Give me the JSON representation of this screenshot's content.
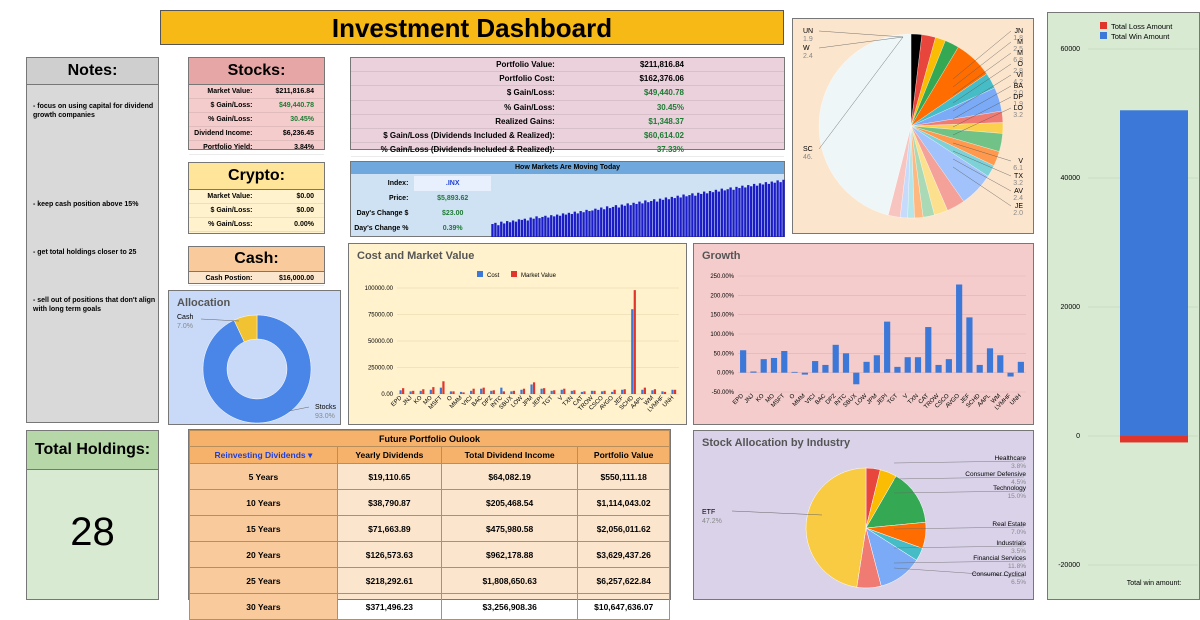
{
  "title": "Investment Dashboard",
  "notes": {
    "header": "Notes:",
    "items": [
      "- focus on using capital for dividend growth companies",
      "- keep cash position above 15%",
      "- get total holdings closer to 25",
      "- sell out of positions that don't align with long term goals"
    ]
  },
  "stocks": {
    "header": "Stocks:",
    "rows": [
      {
        "label": "Market Value:",
        "value": "$211,816.84"
      },
      {
        "label": "$ Gain/Loss:",
        "value": "$49,440.78"
      },
      {
        "label": "% Gain/Loss:",
        "value": "30.45%"
      },
      {
        "label": "Dividend Income:",
        "value": "$6,236.45"
      },
      {
        "label": "Portfolio Yield:",
        "value": "3.84%"
      }
    ]
  },
  "crypto": {
    "header": "Crypto:",
    "rows": [
      {
        "label": "Market Value:",
        "value": "$0.00"
      },
      {
        "label": "$ Gain/Loss:",
        "value": "$0.00"
      },
      {
        "label": "% Gain/Loss:",
        "value": "0.00%"
      }
    ]
  },
  "cash": {
    "header": "Cash:",
    "label": "Cash Postion:",
    "value": "$16,000.00"
  },
  "portfolio": {
    "rows": [
      {
        "label": "Portfolio Value:",
        "value": "$211,816.84"
      },
      {
        "label": "Portfolio Cost:",
        "value": "$162,376.06"
      },
      {
        "label": "$ Gain/Loss:",
        "value": "$49,440.78"
      },
      {
        "label": "% Gain/Loss:",
        "value": "30.45%"
      },
      {
        "label": "Realized Gains:",
        "value": "$1,348.37"
      },
      {
        "label": "$ Gain/Loss (Dividends Included & Realized):",
        "value": "$60,614.02"
      },
      {
        "label": "% Gain/Loss (Dividends Included & Realized):",
        "value": "37.33%"
      }
    ]
  },
  "markets": {
    "header": "How Markets Are Moving Today",
    "rows": [
      {
        "label": "Index:",
        "value": ".INX"
      },
      {
        "label": "Price:",
        "value": "$5,893.62"
      },
      {
        "label": "Day's Change $",
        "value": "$23.00"
      },
      {
        "label": "Day's Change %",
        "value": "0.39%"
      }
    ],
    "spark": [
      22,
      24,
      20,
      26,
      23,
      27,
      25,
      28,
      26,
      30,
      29,
      31,
      28,
      33,
      31,
      35,
      32,
      34,
      36,
      33,
      37,
      35,
      38,
      36,
      40,
      38,
      41,
      39,
      43,
      40,
      44,
      42,
      46,
      44,
      45,
      48,
      46,
      50,
      47,
      52,
      49,
      51,
      54,
      50,
      55,
      53,
      57,
      54,
      58,
      56,
      60,
      57,
      62,
      59,
      61,
      64,
      60,
      65,
      63,
      67,
      64,
      68,
      66,
      70,
      67,
      72,
      69,
      71,
      74,
      70,
      75,
      73,
      77,
      74,
      78,
      76,
      80,
      77,
      82,
      79,
      81,
      84,
      80,
      85,
      83,
      87,
      84,
      88,
      86,
      90,
      87,
      91,
      89,
      93,
      90,
      94,
      92,
      96,
      93,
      97
    ]
  },
  "allocation": {
    "title": "Allocation",
    "slices": [
      {
        "label": "Cash",
        "pct_label": "7.0%",
        "value": 7.0,
        "color": "#f1c232"
      },
      {
        "label": "Stocks",
        "pct_label": "93.0%",
        "value": 93.0,
        "color": "#4a86e8"
      }
    ]
  },
  "holdings": {
    "header": "Total Holdings:",
    "value": "28"
  },
  "future": {
    "title": "Future Portfolio Oulook",
    "select_value": "Reinvesting Dividends",
    "columns": [
      "Yearly Dividends",
      "Total Dividend Income",
      "Portfolio Value"
    ],
    "rows": [
      {
        "years": "5 Years",
        "yearly": "$19,110.65",
        "total": "$64,082.19",
        "value": "$550,111.18"
      },
      {
        "years": "10 Years",
        "yearly": "$38,790.87",
        "total": "$205,468.54",
        "value": "$1,114,043.02"
      },
      {
        "years": "15 Years",
        "yearly": "$71,663.89",
        "total": "$475,980.58",
        "value": "$2,056,011.62"
      },
      {
        "years": "20 Years",
        "yearly": "$126,573.63",
        "total": "$962,178.88",
        "value": "$3,629,437.26"
      },
      {
        "years": "25 Years",
        "yearly": "$218,292.61",
        "total": "$1,808,650.63",
        "value": "$6,257,622.84"
      },
      {
        "years": "30 Years",
        "yearly": "$371,496.23",
        "total": "$3,256,908.36",
        "value": "$10,647,636.07"
      }
    ]
  },
  "colors": {
    "blue": "#3c78d8",
    "red": "#e0352b"
  },
  "chart_data": [
    {
      "id": "cost_mv",
      "type": "bar",
      "title": "Cost and Market Value",
      "legend": [
        "Cost",
        "Market Value"
      ],
      "legend_position": "top",
      "ylim": [
        0,
        100000
      ],
      "yticks": [
        "0.00",
        "25000.00",
        "50000.00",
        "75000.00",
        "100000.00"
      ],
      "categories": [
        "EPD",
        "JNJ",
        "KO",
        "MO",
        "MSFT",
        "O",
        "MMM",
        "VICI",
        "BAC",
        "DPZ",
        "INTC",
        "SBUX",
        "LOW",
        "JPM",
        "JEPI",
        "TGT",
        "V",
        "TXN",
        "CAT",
        "TROW",
        "CSCO",
        "AVGO",
        "JEF",
        "SCHD",
        "AAPL",
        "WM",
        "LVMHF",
        "UNH"
      ],
      "series": [
        {
          "name": "Cost",
          "values": [
            3500,
            2500,
            3000,
            4000,
            6000,
            2500,
            2000,
            3000,
            5000,
            3000,
            6000,
            2500,
            4000,
            9000,
            5000,
            3000,
            4000,
            3000,
            2000,
            3000,
            2500,
            2000,
            4000,
            80000,
            4000,
            3500,
            2500,
            4000
          ]
        },
        {
          "name": "Market Value",
          "values": [
            5500,
            3000,
            4500,
            6500,
            12000,
            2500,
            1500,
            5000,
            6000,
            3500,
            2500,
            3000,
            5000,
            11000,
            5500,
            3500,
            5000,
            3500,
            2500,
            3000,
            3000,
            4000,
            4500,
            98000,
            6000,
            4500,
            2000,
            4000
          ]
        }
      ]
    },
    {
      "id": "growth",
      "type": "bar",
      "title": "Growth",
      "ylim": [
        -50,
        250
      ],
      "yticks": [
        "-50.00%",
        "0.00%",
        "50.00%",
        "100.00%",
        "150.00%",
        "200.00%",
        "250.00%"
      ],
      "categories": [
        "EPD",
        "JNJ",
        "KO",
        "MO",
        "MSFT",
        "O",
        "MMM",
        "VICI",
        "BAC",
        "DPZ",
        "INTC",
        "SBUX",
        "LOW",
        "JPM",
        "JEPI",
        "TGT",
        "V",
        "TXN",
        "CAT",
        "TROW",
        "CSCO",
        "AVGO",
        "JEF",
        "SCHD",
        "AAPL",
        "WM",
        "LVMHF",
        "UNH"
      ],
      "values": [
        58,
        3,
        35,
        38,
        56,
        2,
        -5,
        30,
        20,
        72,
        50,
        -30,
        28,
        45,
        132,
        15,
        40,
        40,
        118,
        20,
        35,
        228,
        143,
        20,
        63,
        45,
        -10,
        28
      ]
    },
    {
      "id": "industry",
      "type": "pie",
      "title": "Stock Allocation by Industry",
      "slices": [
        {
          "label": "ETF",
          "pct": "47.2%",
          "value": 47.2,
          "color": "#f9cb42"
        },
        {
          "label": "Healthcare",
          "pct": "3.8%",
          "value": 3.8,
          "color": "#e8453c"
        },
        {
          "label": "Consumer Defensive",
          "pct": "4.5%",
          "value": 4.5,
          "color": "#fbbc04"
        },
        {
          "label": "Technology",
          "pct": "15.0%",
          "value": 15.0,
          "color": "#34a853"
        },
        {
          "label": "Real Estate",
          "pct": "7.0%",
          "value": 7.0,
          "color": "#ff6d01"
        },
        {
          "label": "Industrials",
          "pct": "3.5%",
          "value": 3.5,
          "color": "#46bdc6"
        },
        {
          "label": "Financial Services",
          "pct": "11.8%",
          "value": 11.8,
          "color": "#7baaf7"
        },
        {
          "label": "Consumer Cyclical",
          "pct": "6.5%",
          "value": 6.5,
          "color": "#f07b72"
        }
      ]
    },
    {
      "id": "holdings_pie",
      "type": "pie",
      "labels_left": [
        {
          "label": "UN",
          "pct": "1.9"
        },
        {
          "label": "W",
          "pct": "2.4"
        },
        {
          "label": "SC",
          "pct": "46."
        }
      ],
      "labels_right": [
        {
          "label": "JN",
          "pct": "1.8"
        },
        {
          "label": "M",
          "pct": "2.5"
        },
        {
          "label": "M",
          "pct": "6.8"
        },
        {
          "label": "O",
          "pct": "2.8"
        },
        {
          "label": "VI",
          "pct": "4.2"
        },
        {
          "label": "BA",
          "pct": "2.0"
        },
        {
          "label": "DP",
          "pct": "1.9"
        },
        {
          "label": "LO",
          "pct": "3.2"
        },
        {
          "label": "V",
          "pct": "6.1"
        },
        {
          "label": "TX",
          "pct": "3.2"
        },
        {
          "label": "AV",
          "pct": "2.4"
        },
        {
          "label": "JE",
          "pct": "2.0"
        }
      ],
      "values": [
        1.9,
        2.4,
        1.8,
        2.5,
        6.8,
        2.8,
        4.2,
        2.0,
        1.9,
        3.2,
        2.6,
        2.1,
        6.1,
        3.2,
        2.4,
        2.0,
        1.5,
        1.2,
        1.3,
        2.1,
        46.0
      ],
      "colors": [
        "#000000",
        "#e8453c",
        "#fbbc04",
        "#34a853",
        "#ff6d01",
        "#46bdc6",
        "#7baaf7",
        "#f07b72",
        "#fcd04f",
        "#71c287",
        "#ff994d",
        "#7ed1d7",
        "#a1c2fa",
        "#f4a19a",
        "#fde08d",
        "#a9dab5",
        "#ffb880",
        "#b3e5e9",
        "#c6dafc",
        "#f8c4bf",
        "#eef6f7"
      ]
    },
    {
      "id": "win_loss",
      "type": "bar",
      "legend": [
        "Total Loss Amount",
        "Total Win Amount"
      ],
      "legend_position": "top",
      "ylim": [
        -20000,
        60000
      ],
      "yticks": [
        "-20000",
        "0",
        "20000",
        "40000",
        "60000"
      ],
      "xlabel": "Total win amount:",
      "series": [
        {
          "name": "Total Loss Amount",
          "values": [
            -1000
          ]
        },
        {
          "name": "Total Win Amount",
          "values": [
            50500
          ]
        }
      ]
    }
  ]
}
